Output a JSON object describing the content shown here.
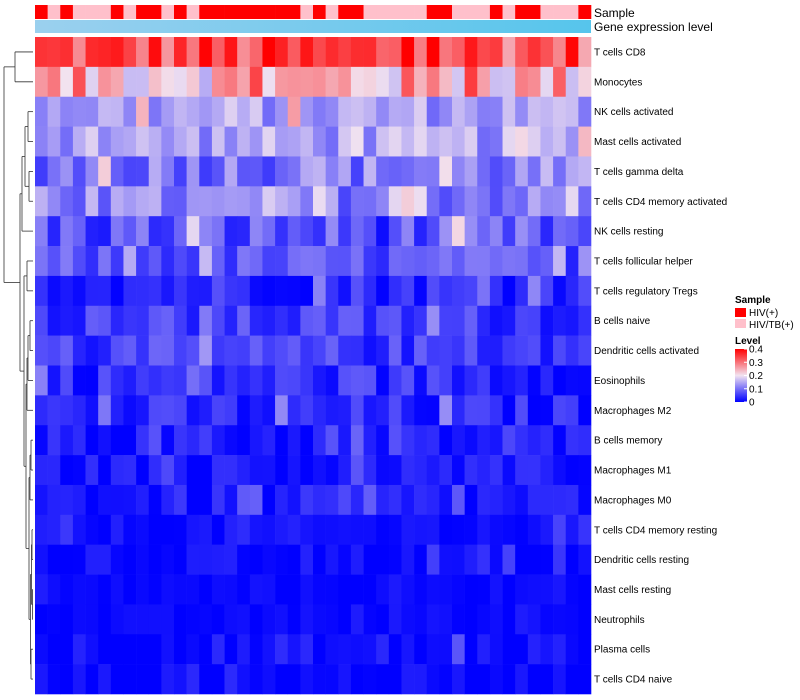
{
  "chart_data": {
    "type": "heatmap",
    "title": "",
    "rows": [
      "T cells CD8",
      "Monocytes",
      "NK cells activated",
      "Mast cells activated",
      "T cells gamma delta",
      "T cells CD4 memory activated",
      "NK cells resting",
      "T cells follicular helper",
      "T cells regulatory  Tregs",
      "B cells naive",
      "Dendritic cells activated",
      "Eosinophils",
      "Macrophages M2",
      "B cells memory",
      "Macrophages M1",
      "Macrophages M0",
      "T cells CD4 memory resting",
      "Dendritic cells resting",
      "Mast cells resting",
      "Neutrophils",
      "Plasma cells",
      "T cells CD4 naive"
    ],
    "num_samples": 44,
    "sample_groups": [
      "HIV(+)",
      "HIV/TB(+)",
      "HIV(+)",
      "HIV/TB(+)",
      "HIV/TB(+)",
      "HIV/TB(+)",
      "HIV(+)",
      "HIV/TB(+)",
      "HIV(+)",
      "HIV(+)",
      "HIV/TB(+)",
      "HIV(+)",
      "HIV/TB(+)",
      "HIV(+)",
      "HIV(+)",
      "HIV(+)",
      "HIV(+)",
      "HIV(+)",
      "HIV(+)",
      "HIV(+)",
      "HIV(+)",
      "HIV/TB(+)",
      "HIV(+)",
      "HIV/TB(+)",
      "HIV(+)",
      "HIV(+)",
      "HIV/TB(+)",
      "HIV/TB(+)",
      "HIV/TB(+)",
      "HIV/TB(+)",
      "HIV/TB(+)",
      "HIV(+)",
      "HIV(+)",
      "HIV/TB(+)",
      "HIV/TB(+)",
      "HIV/TB(+)",
      "HIV(+)",
      "HIV/TB(+)",
      "HIV(+)",
      "HIV(+)",
      "HIV/TB(+)",
      "HIV/TB(+)",
      "HIV/TB(+)",
      "HIV(+)"
    ],
    "row_means": [
      0.33,
      0.24,
      0.14,
      0.14,
      0.11,
      0.11,
      0.07,
      0.07,
      0.04,
      0.05,
      0.05,
      0.04,
      0.03,
      0.02,
      0.02,
      0.02,
      0.01,
      0.01,
      0.005,
      0.005,
      0.01,
      0.005
    ],
    "row_spreads": [
      0.08,
      0.09,
      0.05,
      0.05,
      0.06,
      0.05,
      0.06,
      0.04,
      0.04,
      0.04,
      0.04,
      0.04,
      0.04,
      0.03,
      0.025,
      0.03,
      0.02,
      0.02,
      0.01,
      0.01,
      0.03,
      0.02
    ],
    "color_scale": {
      "min": 0,
      "mid": 0.2,
      "max": 0.4,
      "low_color": "#0000FF",
      "mid_color": "#F2E3F0",
      "high_color": "#FF0000"
    },
    "annotation_tracks": [
      {
        "name": "Sample",
        "type": "categorical"
      },
      {
        "name": "Gene expression level",
        "type": "continuous",
        "color_from": "#9BD0EE",
        "color_to": "#56C5EC"
      }
    ],
    "legend": {
      "position": "right",
      "sample_title": "Sample",
      "sample_entries": [
        {
          "label": "HIV(+)",
          "color": "#FF0000"
        },
        {
          "label": "HIV/TB(+)",
          "color": "#FFC0CB"
        }
      ],
      "level_title": "Level",
      "level_ticks": [
        "0.4",
        "0.3",
        "0.2",
        "0.1",
        "0"
      ],
      "level_tick_values": [
        0.4,
        0.3,
        0.2,
        0.1,
        0
      ]
    },
    "dendrogram": "row clustering tree (left side)"
  }
}
